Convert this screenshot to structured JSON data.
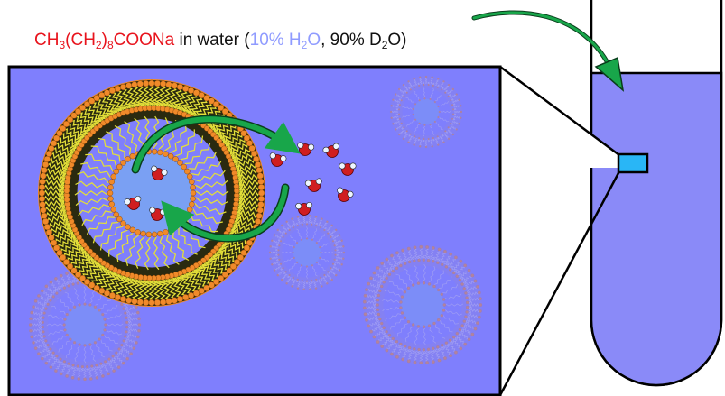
{
  "caption": {
    "formula": {
      "p1": "CH",
      "s1": "3",
      "p2": "(CH",
      "s2": "2",
      "p3": ")",
      "s3": "8",
      "p4": "COONa"
    },
    "in_water": " in water (",
    "h2o_pct": {
      "p1": "10% H",
      "s1": "2",
      "p2": "O"
    },
    "d2o_pct": {
      "p1": ", 90% D",
      "s1": "2",
      "p2": "O)"
    }
  },
  "colors": {
    "formula": "#e8141d",
    "h2o": "#8f9bff",
    "text": "#111111",
    "solution": "#7f7ffd",
    "tube": "#8a8af8",
    "micelle_core": "#7aa0f3",
    "water_pocket": "#3a78c8",
    "headgroup": "#f08a2a",
    "tail": "#e3df39",
    "arrow": "#18a64a",
    "sample_box": "#29b6f6",
    "molecule_o": "#d01e20",
    "molecule_h": "#eef6ff"
  },
  "icons": {
    "reverse_micelle": "reverse-micelle-icon",
    "water_molecule": "water-molecule-icon",
    "exchange_arrows": "circular-exchange-arrows-icon",
    "pointer_arrow": "curved-pointer-arrow-icon"
  }
}
